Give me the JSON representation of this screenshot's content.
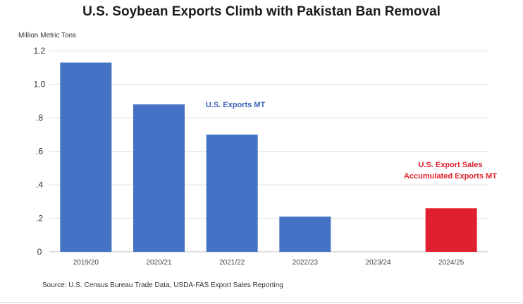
{
  "title": "U.S. Soybean Exports Climb with Pakistan Ban Removal",
  "source": "Source: U.S. Census Bureau Trade Data, USDA-FAS Export Sales Reporting",
  "chart_data": {
    "type": "bar",
    "title": "U.S. Soybean Exports Climb with Pakistan Ban Removal",
    "ylabel": "Million Metric Tons",
    "xlabel": "",
    "ylim": [
      0,
      1.2
    ],
    "yticks": [
      0,
      0.2,
      0.4,
      0.6,
      0.8,
      1.0,
      1.2
    ],
    "ytick_labels": [
      "0",
      ".2",
      ".4",
      ".6",
      ".8",
      "1.0",
      "1.2"
    ],
    "grid": true,
    "categories": [
      "2019/20",
      "2020/21",
      "2021/22",
      "2022/23",
      "2023/24",
      "2024/25"
    ],
    "values": [
      1.13,
      0.88,
      0.7,
      0.21,
      0.0,
      0.26
    ],
    "bar_colors": [
      "#4472c4",
      "#4472c4",
      "#4472c4",
      "#4472c4",
      "#4472c4",
      "#e0202e"
    ],
    "annotations": [
      {
        "lines": [
          "U.S. Exports MT"
        ],
        "color": "#3a62b8"
      },
      {
        "lines": [
          "U.S. Export Sales",
          "Accumulated Exports MT"
        ],
        "color": "#e0202e"
      }
    ]
  }
}
